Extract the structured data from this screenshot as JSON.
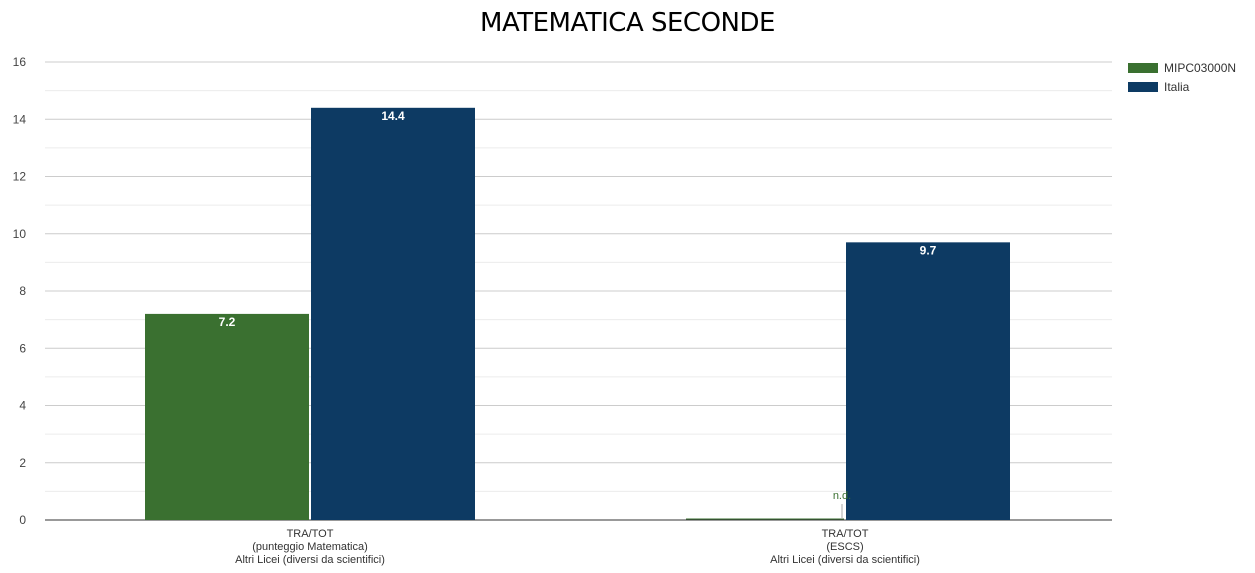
{
  "chart_data": {
    "type": "bar",
    "title": "MATEMATICA SECONDE",
    "categories": [
      [
        "TRA/TOT",
        "(punteggio Matematica)",
        "Altri Licei (diversi da scientifici)"
      ],
      [
        "TRA/TOT",
        "(ESCS)",
        "Altri Licei (diversi da scientifici)"
      ]
    ],
    "series": [
      {
        "name": "MIPC03000N",
        "color": "#3a7030",
        "values": [
          7.2,
          null
        ],
        "labels": [
          "7.2",
          "n.d."
        ]
      },
      {
        "name": "Italia",
        "color": "#0d3a63",
        "values": [
          14.4,
          9.7
        ],
        "labels": [
          "14.4",
          "9.7"
        ]
      }
    ],
    "ylim": [
      0,
      16
    ],
    "yticks": [
      0,
      2,
      4,
      6,
      8,
      10,
      12,
      14,
      16
    ],
    "grid": true,
    "legend_position": "top-right"
  }
}
